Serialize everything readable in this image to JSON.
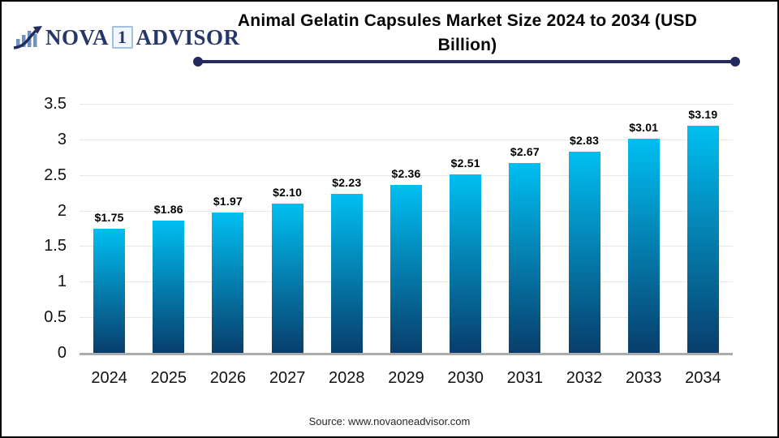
{
  "window": {
    "background": "#ffffff",
    "border_color": "#000000"
  },
  "logo": {
    "icon": "bar-chart-growth-arrow-icon",
    "text_nova": "NOVA",
    "text_one": "1",
    "text_advisor": "ADVISOR",
    "color": "#26366b"
  },
  "header": {
    "title_line1": "Animal Gelatin Capsules Market Size 2024 to 2034 (USD",
    "title_line2": "Billion)",
    "underline_color": "#232b5e"
  },
  "chart_data": {
    "type": "bar",
    "title": "Animal Gelatin Capsules Market Size 2024 to 2034 (USD Billion)",
    "categories": [
      "2024",
      "2025",
      "2026",
      "2027",
      "2028",
      "2029",
      "2030",
      "2031",
      "2032",
      "2033",
      "2034"
    ],
    "values": [
      1.75,
      1.86,
      1.97,
      2.1,
      2.23,
      2.36,
      2.51,
      2.67,
      2.83,
      3.01,
      3.19
    ],
    "bar_labels": [
      "$1.75",
      "$1.86",
      "$1.97",
      "$2.10",
      "$2.23",
      "$2.36",
      "$2.51",
      "$2.67",
      "$2.83",
      "$3.01",
      "$3.19"
    ],
    "xlabel": "",
    "ylabel": "",
    "ylim": [
      0,
      3.5
    ],
    "yticks": [
      0,
      0.5,
      1,
      1.5,
      2,
      2.5,
      3,
      3.5
    ],
    "ytick_labels": [
      "0",
      "0.5",
      "1",
      "1.5",
      "2",
      "2.5",
      "3",
      "3.5"
    ],
    "grid": true,
    "legend": false,
    "bar_color_top": "#00bff2",
    "bar_color_bottom": "#083e6c"
  },
  "footer": {
    "source": "Source: www.novaoneadvisor.com"
  }
}
